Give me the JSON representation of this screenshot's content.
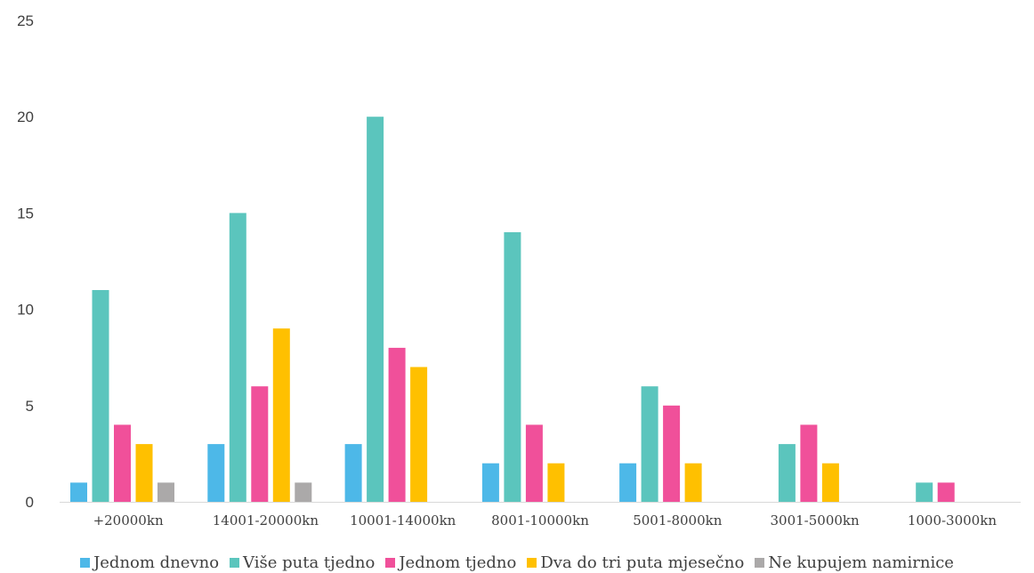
{
  "chart_data": {
    "type": "bar",
    "title": "",
    "xlabel": "",
    "ylabel": "",
    "ylim": [
      0,
      25
    ],
    "yticks": [
      "0",
      "5",
      "10",
      "15",
      "20",
      "25"
    ],
    "grid": false,
    "legend_position": "bottom",
    "categories": [
      "+20000kn",
      "14001-20000kn",
      "10001-14000kn",
      "8001-10000kn",
      "5001-8000kn",
      "3001-5000kn",
      "1000-3000kn"
    ],
    "series": [
      {
        "name": "Jednom dnevno",
        "color": "#4DB8E8",
        "values": [
          1,
          3,
          3,
          2,
          2,
          0,
          0
        ]
      },
      {
        "name": "Više puta tjedno",
        "color": "#5BC5BD",
        "values": [
          11,
          15,
          20,
          14,
          6,
          3,
          1
        ]
      },
      {
        "name": "Jednom tjedno",
        "color": "#F0509A",
        "values": [
          4,
          6,
          8,
          4,
          5,
          4,
          1
        ]
      },
      {
        "name": "Dva do tri puta mjesečno",
        "color": "#FFC000",
        "values": [
          3,
          9,
          7,
          2,
          2,
          2,
          0
        ]
      },
      {
        "name": "Ne kupujem namirnice",
        "color": "#ABA9A9",
        "values": [
          1,
          1,
          0,
          0,
          0,
          0,
          0
        ]
      }
    ]
  }
}
